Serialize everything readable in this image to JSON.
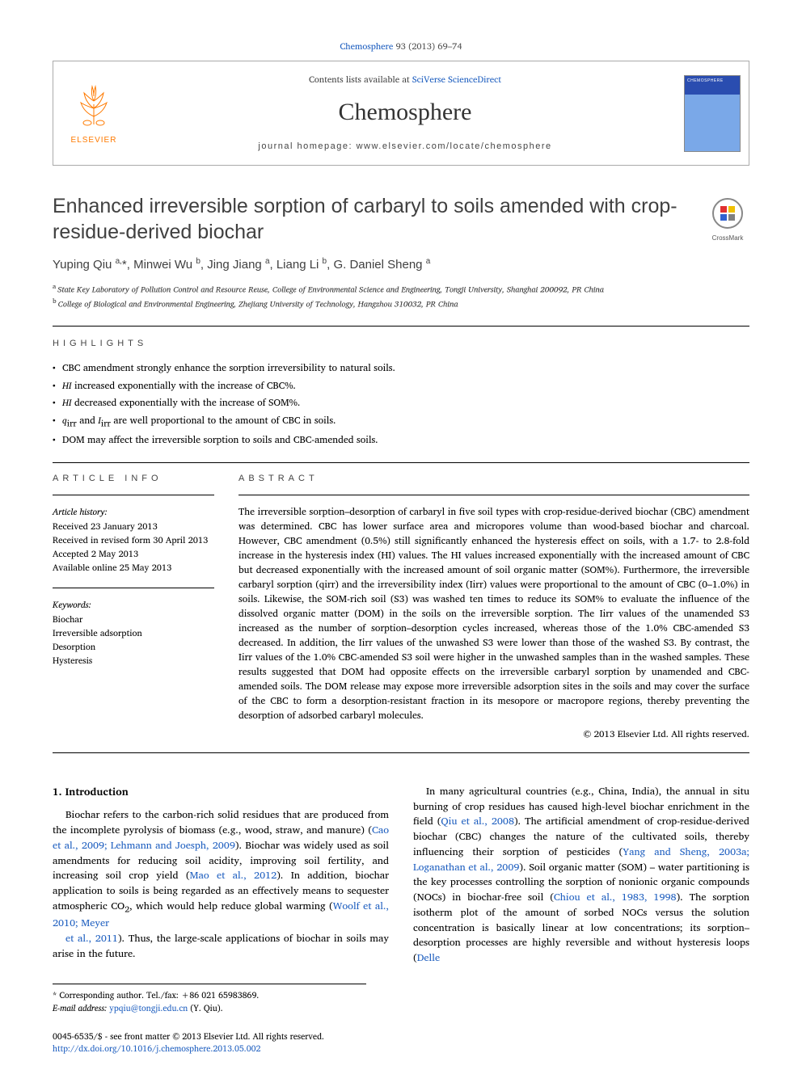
{
  "citation": {
    "journal_link": "Chemosphere",
    "vol_pages": " 93 (2013) 69–74"
  },
  "header": {
    "publisher": "ELSEVIER",
    "contents_prefix": "Contents lists available at ",
    "contents_link": "SciVerse ScienceDirect",
    "journal_name": "Chemosphere",
    "homepage_prefix": "journal homepage: ",
    "homepage_url": "www.elsevier.com/locate/chemosphere"
  },
  "crossmark_label": "CrossMark",
  "title": "Enhanced irreversible sorption of carbaryl to soils amended with crop-residue-derived biochar",
  "authors_html": "Yuping Qiu <sup>a,</sup>*, Minwei Wu <sup>b</sup>, Jing Jiang <sup>a</sup>, Liang Li <sup>b</sup>, G. Daniel Sheng <sup>a</sup>",
  "affiliations": {
    "a": "State Key Laboratory of Pollution Control and Resource Reuse, College of Environmental Science and Engineering, Tongji University, Shanghai 200092, PR China",
    "b": "College of Biological and Environmental Engineering, Zhejiang University of Technology, Hangzhou 310032, PR China"
  },
  "labels": {
    "highlights": "HIGHLIGHTS",
    "article_info": "ARTICLE INFO",
    "abstract": "ABSTRACT",
    "history": "Article history:",
    "keywords": "Keywords:"
  },
  "highlights": [
    "CBC amendment strongly enhance the sorption irreversibility to natural soils.",
    "<i>HI</i> increased exponentially with the increase of CBC%.",
    "<i>HI</i> decreased exponentially with the increase of SOM%.",
    "<i>q</i><sub>irr</sub> and <i>I</i><sub>irr</sub> are well proportional to the amount of CBC in soils.",
    "DOM may affect the irreversible sorption to soils and CBC-amended soils."
  ],
  "history": {
    "received": "Received 23 January 2013",
    "revised": "Received in revised form 30 April 2013",
    "accepted": "Accepted 2 May 2013",
    "online": "Available online 25 May 2013"
  },
  "keywords": [
    "Biochar",
    "Irreversible adsorption",
    "Desorption",
    "Hysteresis"
  ],
  "abstract": "The irreversible sorption–desorption of carbaryl in five soil types with crop-residue-derived biochar (CBC) amendment was determined. CBC has lower surface area and micropores volume than wood-based biochar and charcoal. However, CBC amendment (0.5%) still significantly enhanced the hysteresis effect on soils, with a 1.7- to 2.8-fold increase in the hysteresis index (HI) values. The HI values increased exponentially with the increased amount of CBC but decreased exponentially with the increased amount of soil organic matter (SOM%). Furthermore, the irreversible carbaryl sorption (qirr) and the irreversibility index (Iirr) values were proportional to the amount of CBC (0–1.0%) in soils. Likewise, the SOM-rich soil (S3) was washed ten times to reduce its SOM% to evaluate the influence of the dissolved organic matter (DOM) in the soils on the irreversible sorption. The Iirr values of the unamended S3 increased as the number of sorption–desorption cycles increased, whereas those of the 1.0% CBC-amended S3 decreased. In addition, the Iirr values of the unwashed S3 were lower than those of the washed S3. By contrast, the Iirr values of the 1.0% CBC-amended S3 soil were higher in the unwashed samples than in the washed samples. These results suggested that DOM had opposite effects on the irreversible carbaryl sorption by unamended and CBC-amended soils. The DOM release may expose more irreversible adsorption sites in the soils and may cover the surface of the CBC to form a desorption-resistant fraction in its mesopore or macropore regions, thereby preventing the desorption of adsorbed carbaryl molecules.",
  "copyright": "© 2013 Elsevier Ltd. All rights reserved.",
  "body": {
    "intro_heading": "1. Introduction",
    "p1_html": "Biochar refers to the carbon-rich solid residues that are produced from the incomplete pyrolysis of biomass (e.g., wood, straw, and manure) (<a class='ref' href='#'>Cao et al., 2009; Lehmann and Joesph, 2009</a>). Biochar was widely used as soil amendments for reducing soil acidity, improving soil fertility, and increasing soil crop yield (<a class='ref' href='#'>Mao et al., 2012</a>). In addition, biochar application to soils is being regarded as an effectively means to sequester atmospheric CO<sub>2</sub>, which would help reduce global warming (<a class='ref' href='#'>Woolf et al., 2010; Meyer</a>",
    "p2_html": "<a class='ref' href='#'>et al., 2011</a>). Thus, the large-scale applications of biochar in soils may arise in the future.",
    "p3_html": "In many agricultural countries (e.g., China, India), the annual in situ burning of crop residues has caused high-level biochar enrichment in the field (<a class='ref' href='#'>Qiu et al., 2008</a>). The artificial amendment of crop-residue-derived biochar (CBC) changes the nature of the cultivated soils, thereby influencing their sorption of pesticides (<a class='ref' href='#'>Yang and Sheng, 2003a; Loganathan et al., 2009</a>). Soil organic matter (SOM) – water partitioning is the key processes controlling the sorption of nonionic organic compounds (NOCs) in biochar-free soil (<a class='ref' href='#'>Chiou et al., 1983, 1998</a>). The sorption isotherm plot of the amount of sorbed NOCs versus the solution concentration is basically linear at low concentrations; its sorption–desorption processes are highly reversible and without hysteresis loops (<a class='ref' href='#'>Delle</a>"
  },
  "footnote": {
    "corr": "* Corresponding author. Tel./fax: +86 021 65983869.",
    "email_label": "E-mail address:",
    "email": "ypqiu@tongji.edu.cn",
    "email_who": "(Y. Qiu)."
  },
  "footer": {
    "line1": "0045-6535/$ - see front matter © 2013 Elsevier Ltd. All rights reserved.",
    "doi": "http://dx.doi.org/10.1016/j.chemosphere.2013.05.002"
  },
  "colors": {
    "link": "#2060c0",
    "elsevier_orange": "#ff7a00",
    "text_gray": "#404040",
    "cover_top": "#2a4db0",
    "cover_bottom": "#7aa8e8"
  }
}
